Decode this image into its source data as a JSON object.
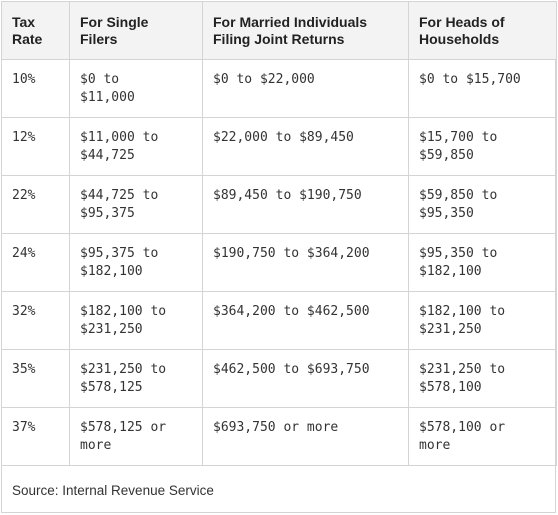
{
  "table": {
    "headers": [
      "Tax Rate",
      "For Single Filers",
      "For Married Individuals Filing Joint Returns",
      "For Heads of Households"
    ],
    "header_lines": [
      [
        "Tax",
        "Rate"
      ],
      [
        "For Single",
        "Filers"
      ],
      [
        "For Married Individuals",
        "Filing Joint Returns"
      ],
      [
        "For Heads of",
        "Households"
      ]
    ],
    "rows": [
      {
        "rate": "10%",
        "single": [
          "$0 to",
          "$11,000"
        ],
        "married": [
          "$0 to $22,000"
        ],
        "heads": [
          "$0 to $15,700"
        ]
      },
      {
        "rate": "12%",
        "single": [
          "$11,000 to",
          "$44,725"
        ],
        "married": [
          "$22,000 to $89,450"
        ],
        "heads": [
          "$15,700 to",
          "$59,850"
        ]
      },
      {
        "rate": "22%",
        "single": [
          "$44,725 to",
          "$95,375"
        ],
        "married": [
          "$89,450 to $190,750"
        ],
        "heads": [
          "$59,850 to",
          "$95,350"
        ]
      },
      {
        "rate": "24%",
        "single": [
          "$95,375 to",
          "$182,100"
        ],
        "married": [
          "$190,750 to $364,200"
        ],
        "heads": [
          "$95,350 to",
          "$182,100"
        ]
      },
      {
        "rate": "32%",
        "single": [
          "$182,100 to",
          "$231,250"
        ],
        "married": [
          "$364,200 to $462,500"
        ],
        "heads": [
          "$182,100 to",
          "$231,250"
        ]
      },
      {
        "rate": "35%",
        "single": [
          "$231,250 to",
          "$578,125"
        ],
        "married": [
          "$462,500 to $693,750"
        ],
        "heads": [
          "$231,250 to",
          "$578,100"
        ]
      },
      {
        "rate": "37%",
        "single": [
          "$578,125 or",
          "more"
        ],
        "married": [
          "$693,750 or more"
        ],
        "heads": [
          "$578,100 or",
          "more"
        ]
      }
    ]
  },
  "source": "Source: Internal Revenue Service"
}
